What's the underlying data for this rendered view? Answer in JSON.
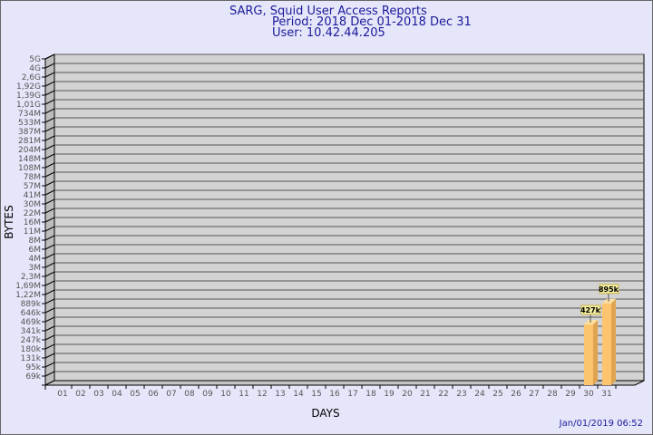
{
  "header": {
    "title": "SARG, Squid User Access Reports",
    "period": "Period: 2018 Dec 01-2018 Dec 31",
    "user": "User: 10.42.44.205"
  },
  "footer": {
    "timestamp": "Jan/01/2019 06:52"
  },
  "colors": {
    "background": "#e6e6fa",
    "wall": "#d3d3d3",
    "bar_front": "#fcc46c",
    "bar_side": "#e0a450",
    "bar_top": "#fde0a0",
    "title": "#1a1a9a"
  },
  "chart_data": {
    "type": "bar",
    "xlabel": "DAYS",
    "ylabel": "BYTES",
    "y_scale": "nonlinear (tick labels as printed)",
    "grid": true,
    "y_ticks": [
      "5G",
      "4G",
      "2,6G",
      "1,92G",
      "1,39G",
      "1,01G",
      "734M",
      "533M",
      "387M",
      "281M",
      "204M",
      "148M",
      "108M",
      "78M",
      "57M",
      "41M",
      "30M",
      "22M",
      "16M",
      "11M",
      "8M",
      "6M",
      "4M",
      "3M",
      "2,3M",
      "1,69M",
      "1,22M",
      "889k",
      "646k",
      "469k",
      "341k",
      "247k",
      "180k",
      "131k",
      "95k",
      "69k"
    ],
    "categories": [
      "01",
      "02",
      "03",
      "04",
      "05",
      "06",
      "07",
      "08",
      "09",
      "10",
      "11",
      "12",
      "13",
      "14",
      "15",
      "16",
      "17",
      "18",
      "19",
      "20",
      "21",
      "22",
      "23",
      "24",
      "25",
      "26",
      "27",
      "28",
      "29",
      "30",
      "31"
    ],
    "bars": [
      {
        "day": "30",
        "value_label": "427k",
        "value": 427000
      },
      {
        "day": "31",
        "value_label": "895k",
        "value": 895000
      }
    ]
  }
}
